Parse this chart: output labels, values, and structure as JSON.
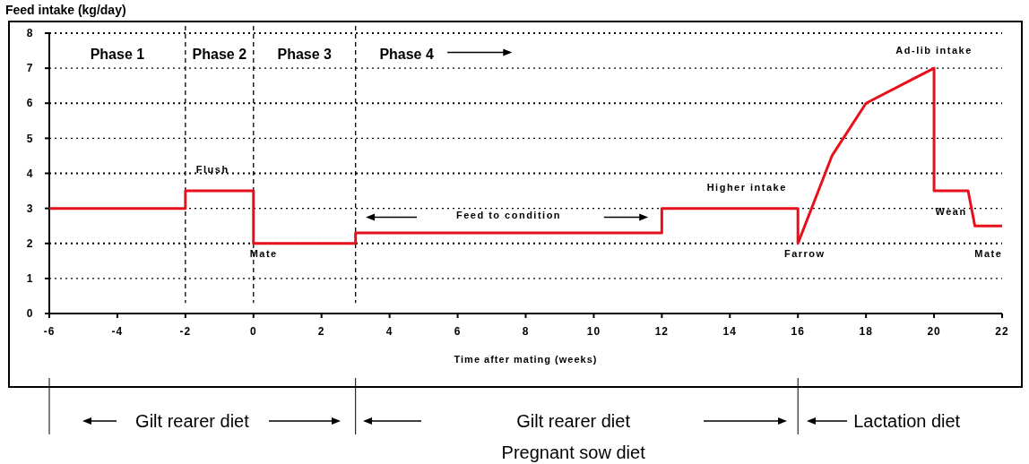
{
  "chart_data": {
    "type": "line",
    "ylabel": "Feed intake (kg/day)",
    "xlabel": "Time after mating (weeks)",
    "xlim": [
      -6,
      22
    ],
    "xticks": [
      -6,
      -4,
      -2,
      0,
      2,
      4,
      6,
      8,
      10,
      12,
      14,
      16,
      18,
      20,
      22
    ],
    "ylim": [
      0,
      8
    ],
    "yticks": [
      0,
      1,
      2,
      3,
      4,
      5,
      6,
      7,
      8
    ],
    "grid": "y",
    "marker": "none",
    "line_style": "solid",
    "series": [
      {
        "color": "#e8101a",
        "x": [
          -6,
          -2,
          -2,
          0,
          0,
          3,
          3,
          12,
          12,
          16,
          16,
          17,
          18,
          20,
          20,
          21,
          21.2,
          22
        ],
        "values": [
          3,
          3,
          3.5,
          3.5,
          2,
          2,
          2.3,
          2.3,
          3,
          3,
          2,
          4.5,
          6,
          7,
          3.5,
          3.5,
          2.5,
          2.5
        ]
      }
    ],
    "ref_lines": [
      {
        "axis": "x",
        "value": -2,
        "line_style": "dashed",
        "color": "#000000"
      },
      {
        "axis": "x",
        "value": 0,
        "line_style": "dashed",
        "color": "#000000"
      },
      {
        "axis": "x",
        "value": 3,
        "line_style": "dashed",
        "color": "#000000"
      }
    ],
    "annotations": [
      "Phase 1",
      "Phase 2",
      "Phase 3",
      "Phase 4",
      "Flush",
      "Mate",
      "Feed to condition",
      "Higher intake",
      "Farrow",
      "Ad-lib intake",
      "Wean",
      "Mate",
      "Gilt rearer diet",
      "Gilt rearer diet",
      "Pregnant sow diet",
      "Lactation diet"
    ]
  }
}
